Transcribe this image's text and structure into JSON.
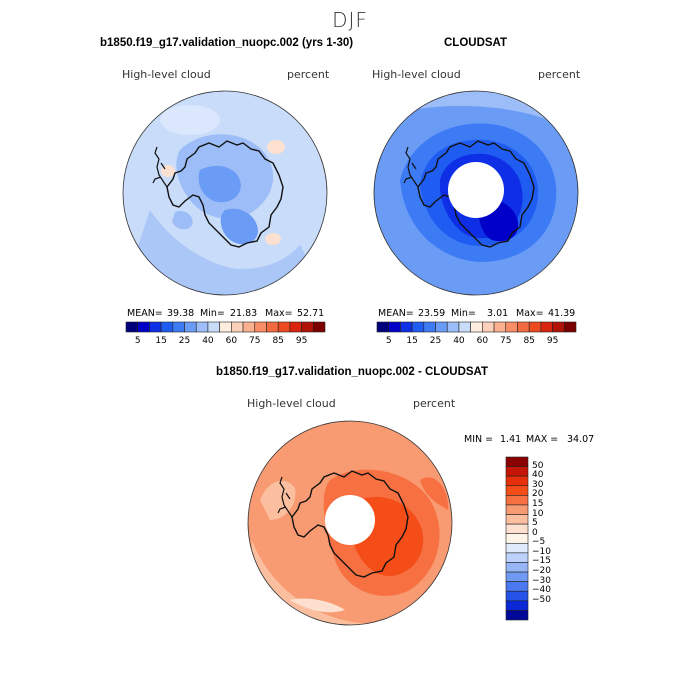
{
  "figure": {
    "title": "DJF",
    "panels": [
      {
        "title": "b1850.f19_g17.validation_nuopc.002 (yrs 1-30)",
        "left_label": "High-level cloud",
        "right_label": "percent",
        "mean_label": "MEAN=",
        "mean_value": "39.38",
        "min_label": "Min=",
        "min_value": "21.83",
        "max_label": "Max=",
        "max_value": "52.71"
      },
      {
        "title": "CLOUDSAT",
        "left_label": "High-level cloud",
        "right_label": "percent",
        "mean_label": "MEAN=",
        "mean_value": "23.59",
        "min_label": "Min=",
        "min_value": "3.01",
        "max_label": "Max=",
        "max_value": "41.39"
      },
      {
        "title": "b1850.f19_g17.validation_nuopc.002 - CLOUDSAT",
        "left_label": "High-level cloud",
        "right_label": "percent",
        "min_label": "MIN =",
        "min_value": "1.41",
        "max_label": "MAX =",
        "max_value": "34.07"
      }
    ],
    "colorbar_abs": {
      "colors": [
        "#00007d",
        "#0000c8",
        "#0f2fe6",
        "#1f5cf2",
        "#3d7bf5",
        "#6a9cf6",
        "#9cbdf7",
        "#c9dcfa",
        "#ffeede",
        "#fcd1bb",
        "#fbb090",
        "#f88d66",
        "#f46a40",
        "#ee4a1f",
        "#d92410",
        "#b01208",
        "#7d0000"
      ],
      "labels": [
        "5",
        "15",
        "25",
        "40",
        "60",
        "75",
        "85",
        "95"
      ]
    },
    "colorbar_diff": {
      "colors": [
        "#8b0000",
        "#c41506",
        "#e63009",
        "#f44d18",
        "#f67042",
        "#f89a72",
        "#fbbfa0",
        "#fde0cf",
        "#fff4ea",
        "#dfeafc",
        "#bcd2fa",
        "#97b6f7",
        "#7099f3",
        "#4a78ee",
        "#2552e8",
        "#0a28d6",
        "#00089a"
      ],
      "labels": [
        "50",
        "40",
        "30",
        "20",
        "15",
        "10",
        "5",
        "0",
        "−5",
        "−10",
        "−15",
        "−20",
        "−30",
        "−40",
        "−50"
      ]
    }
  }
}
